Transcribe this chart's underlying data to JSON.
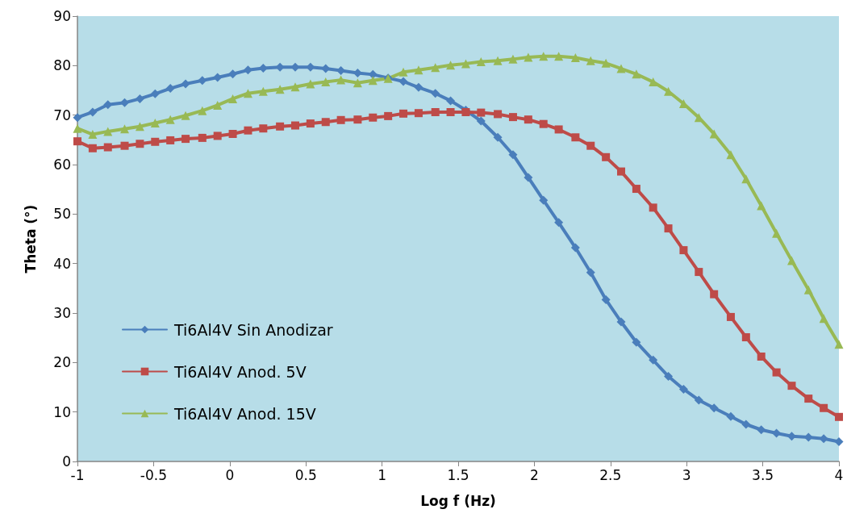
{
  "chart_data": {
    "type": "line",
    "xlabel": "Log f (Hz)",
    "ylabel": "Theta (°)",
    "x": [
      -1,
      -0.9,
      -0.8,
      -0.69,
      -0.59,
      -0.49,
      -0.39,
      -0.29,
      -0.18,
      -0.08,
      0.02,
      0.12,
      0.22,
      0.33,
      0.43,
      0.53,
      0.63,
      0.73,
      0.84,
      0.94,
      1.04,
      1.14,
      1.24,
      1.35,
      1.45,
      1.55,
      1.65,
      1.76,
      1.86,
      1.96,
      2.06,
      2.16,
      2.27,
      2.37,
      2.47,
      2.57,
      2.67,
      2.78,
      2.88,
      2.98,
      3.08,
      3.18,
      3.29,
      3.39,
      3.49,
      3.59,
      3.69,
      3.8,
      3.9,
      4
    ],
    "series": [
      {
        "name": "Ti6Al4V Sin Anodizar",
        "color": "#4a7ebb",
        "marker": "diamond",
        "values": [
          69.5,
          70.6,
          72.1,
          72.5,
          73.3,
          74.3,
          75.4,
          76.3,
          77.0,
          77.6,
          78.3,
          79.1,
          79.5,
          79.7,
          79.7,
          79.7,
          79.4,
          79.0,
          78.5,
          78.2,
          77.5,
          76.8,
          75.6,
          74.4,
          72.9,
          71.0,
          68.8,
          65.5,
          62.0,
          57.4,
          52.8,
          48.3,
          43.2,
          38.2,
          32.7,
          28.2,
          24.1,
          20.5,
          17.2,
          14.6,
          12.4,
          10.8,
          9.1,
          7.5,
          6.4,
          5.7,
          5.1,
          4.9,
          4.6,
          4.0
        ]
      },
      {
        "name": "Ti6Al4V Anod. 5V",
        "color": "#be4b48",
        "marker": "square",
        "values": [
          64.7,
          63.3,
          63.5,
          63.8,
          64.2,
          64.6,
          64.9,
          65.2,
          65.4,
          65.8,
          66.2,
          66.9,
          67.3,
          67.7,
          67.9,
          68.3,
          68.6,
          69.0,
          69.1,
          69.5,
          69.8,
          70.3,
          70.4,
          70.6,
          70.6,
          70.6,
          70.5,
          70.2,
          69.6,
          69.1,
          68.2,
          67.1,
          65.5,
          63.8,
          61.5,
          58.6,
          55.1,
          51.3,
          47.1,
          42.7,
          38.3,
          33.8,
          29.2,
          25.1,
          21.2,
          18.0,
          15.3,
          12.7,
          10.8,
          9.0
        ]
      },
      {
        "name": "Ti6Al4V Anod. 15V",
        "color": "#98b954",
        "marker": "triangle",
        "values": [
          67.3,
          66.1,
          66.7,
          67.2,
          67.7,
          68.4,
          69.1,
          69.9,
          70.9,
          72.0,
          73.3,
          74.4,
          74.8,
          75.2,
          75.7,
          76.3,
          76.7,
          77.1,
          76.5,
          77.0,
          77.4,
          78.7,
          79.1,
          79.6,
          80.1,
          80.4,
          80.8,
          81.0,
          81.3,
          81.7,
          81.9,
          81.9,
          81.6,
          81.0,
          80.5,
          79.4,
          78.3,
          76.7,
          74.8,
          72.3,
          69.5,
          66.2,
          62.0,
          57.1,
          51.7,
          46.1,
          40.6,
          34.7,
          28.9,
          23.7
        ]
      }
    ],
    "xlim": [
      -1,
      4
    ],
    "xticks": [
      -1,
      -0.5,
      0,
      0.5,
      1,
      1.5,
      2,
      2.5,
      3,
      3.5,
      4
    ],
    "ylim": [
      0,
      90
    ],
    "yticks": [
      0,
      10,
      20,
      30,
      40,
      50,
      60,
      70,
      80,
      90
    ],
    "grid": false,
    "legend": "bottom left"
  }
}
